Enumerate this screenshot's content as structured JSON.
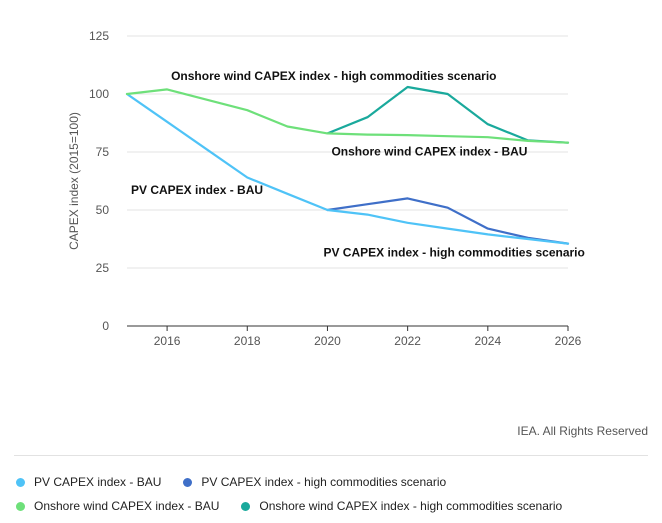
{
  "chart_data": {
    "type": "line",
    "ylabel": "CAPEX index (2015=100)",
    "xlabel": "",
    "xlim": [
      2015,
      2026
    ],
    "ylim": [
      0,
      125
    ],
    "x_ticks": [
      "2016",
      "2018",
      "2020",
      "2022",
      "2024",
      "2026"
    ],
    "y_ticks": [
      "0",
      "25",
      "50",
      "75",
      "100",
      "125"
    ],
    "grid": "horizontal",
    "legend_position": "bottom",
    "series": [
      {
        "name": "PV CAPEX index - BAU",
        "color": "#4fc3f7",
        "x": [
          2015,
          2016,
          2017,
          2018,
          2019,
          2020,
          2021,
          2022,
          2023,
          2024,
          2025,
          2026
        ],
        "values": [
          100,
          88,
          76,
          64,
          57,
          50,
          48,
          44.5,
          42,
          39.5,
          37.5,
          35.5
        ]
      },
      {
        "name": "PV CAPEX index - high commodities scenario",
        "color": "#3f6fc8",
        "x": [
          2020,
          2021,
          2022,
          2023,
          2024,
          2025,
          2026
        ],
        "values": [
          50,
          52.5,
          55,
          51,
          42,
          38,
          35.5
        ]
      },
      {
        "name": "Onshore wind CAPEX index - BAU",
        "color": "#6ee07a",
        "x": [
          2015,
          2016,
          2017,
          2018,
          2019,
          2020,
          2021,
          2022,
          2023,
          2024,
          2025,
          2026
        ],
        "values": [
          100,
          102,
          97.5,
          93,
          86,
          83,
          82.5,
          82.3,
          81.8,
          81.4,
          79.8,
          79
        ]
      },
      {
        "name": "Onshore wind CAPEX index - high commodities scenario",
        "color": "#1aa99c",
        "x": [
          2020,
          2021,
          2022,
          2023,
          2024,
          2025,
          2026
        ],
        "values": [
          83,
          90,
          103,
          100,
          87,
          80,
          79
        ]
      }
    ],
    "annotations": [
      {
        "text": "Onshore wind CAPEX index - high commodities scenario",
        "x": 2016.1,
        "y": 106
      },
      {
        "text": "Onshore wind CAPEX index - BAU",
        "x": 2020.1,
        "y": 73.5
      },
      {
        "text": "PV CAPEX index - BAU",
        "x": 2015.1,
        "y": 57
      },
      {
        "text": "PV CAPEX index - high commodities scenario",
        "x": 2019.9,
        "y": 30
      }
    ]
  },
  "credit": "IEA. All Rights Reserved",
  "legend": [
    {
      "label": "PV CAPEX index - BAU",
      "color": "#4fc3f7"
    },
    {
      "label": "PV CAPEX index - high commodities scenario",
      "color": "#3f6fc8"
    },
    {
      "label": "Onshore wind CAPEX index - BAU",
      "color": "#6ee07a"
    },
    {
      "label": "Onshore wind CAPEX index - high commodities scenario",
      "color": "#1aa99c"
    }
  ]
}
